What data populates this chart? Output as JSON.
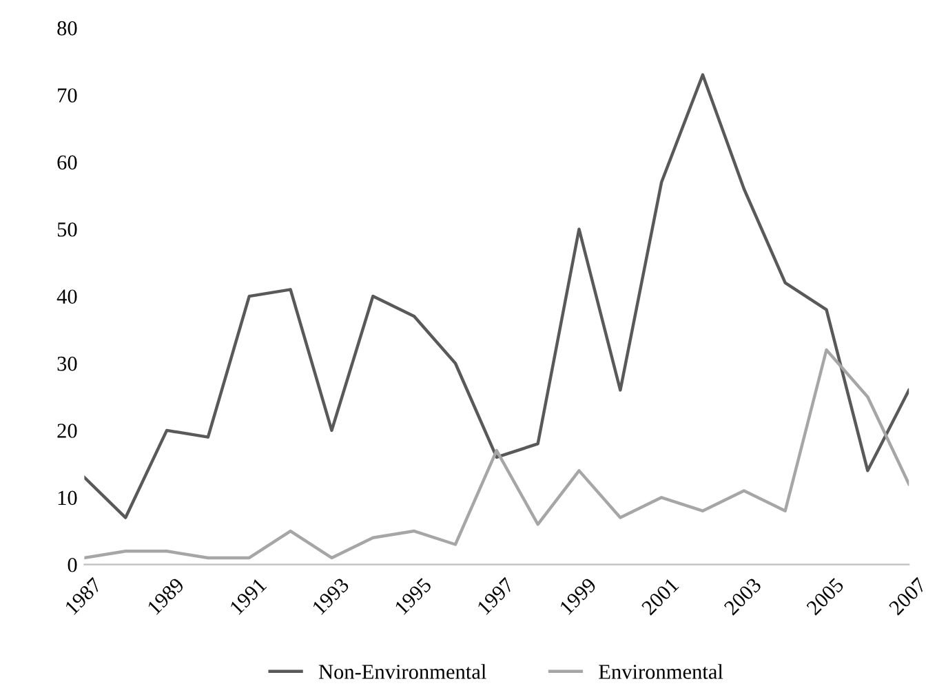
{
  "chart_data": {
    "type": "line",
    "x": [
      1987,
      1988,
      1989,
      1990,
      1991,
      1992,
      1993,
      1994,
      1995,
      1996,
      1997,
      1998,
      1999,
      2000,
      2001,
      2002,
      2003,
      2004,
      2005,
      2006,
      2007
    ],
    "series": [
      {
        "name": "Non-Environmental",
        "color": "#595959",
        "values": [
          13,
          7,
          20,
          19,
          40,
          41,
          20,
          40,
          37,
          30,
          16,
          18,
          50,
          26,
          57,
          73,
          56,
          42,
          38,
          14,
          26
        ]
      },
      {
        "name": "Environmental",
        "color": "#a6a6a6",
        "values": [
          1,
          2,
          2,
          1,
          1,
          5,
          1,
          4,
          5,
          3,
          17,
          6,
          14,
          7,
          10,
          8,
          11,
          8,
          32,
          25,
          12
        ]
      }
    ],
    "xlim": [
      1987,
      2007
    ],
    "xticks": [
      1987,
      1989,
      1991,
      1993,
      1995,
      1997,
      1999,
      2001,
      2003,
      2005,
      2007
    ],
    "ylim": [
      0,
      80
    ],
    "yticks": [
      0,
      10,
      20,
      30,
      40,
      50,
      60,
      70,
      80
    ],
    "grid": false,
    "legend": "bottom",
    "marker": "none",
    "line_style": "solid"
  }
}
